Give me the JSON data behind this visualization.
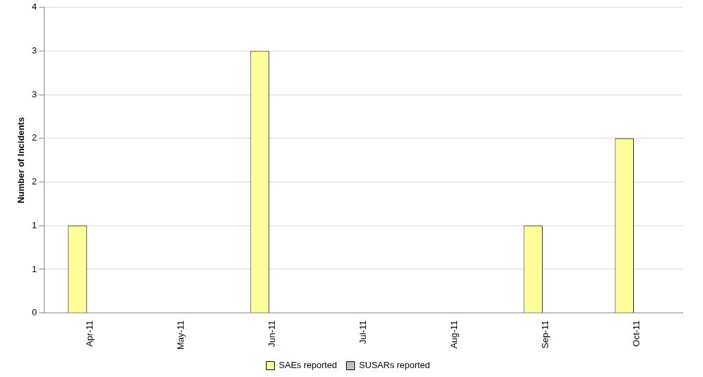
{
  "chart_data": {
    "type": "bar",
    "ylabel": "Number of Incidents",
    "categories": [
      "Apr-11",
      "May-11",
      "Jun-11",
      "Jul-11",
      "Aug-11",
      "Sep-11",
      "Oct-11"
    ],
    "series": [
      {
        "name": "SAEs reported",
        "color": "#ffff99",
        "values": [
          1,
          0,
          3,
          0,
          0,
          1,
          2
        ]
      },
      {
        "name": "SUSARs reported",
        "color": "#c0c0c0",
        "values": [
          0,
          0,
          0,
          0,
          0,
          0,
          0
        ]
      }
    ],
    "ylim": [
      0,
      3.5
    ],
    "yticks": [
      0,
      {
        "value": 0.5,
        "label": "1"
      },
      1,
      {
        "value": 1.5,
        "label": "2"
      },
      2,
      {
        "value": 2.5,
        "label": "3"
      },
      3,
      {
        "value": 3.5,
        "label": "4"
      }
    ],
    "grid": "y",
    "legend": "bottom"
  }
}
